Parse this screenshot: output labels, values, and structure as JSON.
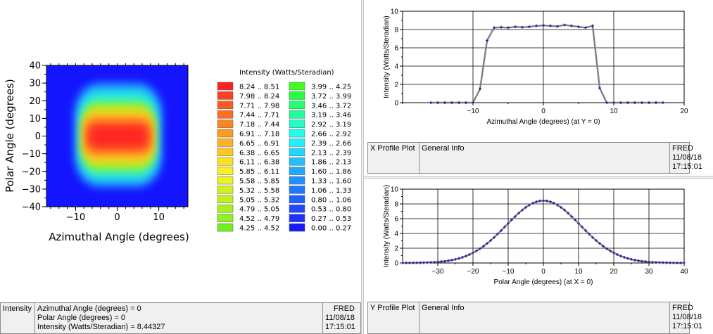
{
  "colors": {
    "line_gray": "#808080",
    "marker_blue": "#1a1aa8",
    "panel_bg": "#f0f0f0"
  },
  "intensity_map": {
    "type": "heatmap",
    "xlabel": "Azimuthal Angle (degrees)",
    "ylabel": "Polar Angle (degrees)",
    "xlim": [
      -17,
      17
    ],
    "ylim": [
      -40,
      40
    ],
    "xticks": [
      "−10",
      "0",
      "10"
    ],
    "xtick_values": [
      -10,
      0,
      10
    ],
    "yticks": [
      "40",
      "30",
      "20",
      "10",
      "0",
      "−10",
      "−20",
      "−30",
      "−40"
    ],
    "ytick_values": [
      40,
      30,
      20,
      10,
      0,
      -10,
      -20,
      -30,
      -40
    ],
    "peak_value": 8.44327,
    "legend_title": "Intensity (Watts/Steradian)",
    "legend": [
      {
        "label": "8.24 .. 8.51",
        "color": "#ff2020"
      },
      {
        "label": "7.98 .. 8.24",
        "color": "#ff4020"
      },
      {
        "label": "7.71 .. 7.98",
        "color": "#ff5a20"
      },
      {
        "label": "7.44 .. 7.71",
        "color": "#ff6e20"
      },
      {
        "label": "7.18 .. 7.44",
        "color": "#ff8420"
      },
      {
        "label": "6.91 .. 7.18",
        "color": "#ff9a20"
      },
      {
        "label": "6.65 .. 6.91",
        "color": "#ffb020"
      },
      {
        "label": "6.38 .. 6.65",
        "color": "#ffc820"
      },
      {
        "label": "6.11 .. 6.38",
        "color": "#ffe020"
      },
      {
        "label": "5.85 .. 6.11",
        "color": "#f8f020"
      },
      {
        "label": "5.58 .. 5.85",
        "color": "#e8f420"
      },
      {
        "label": "5.32 .. 5.58",
        "color": "#d4f020"
      },
      {
        "label": "5.05 .. 5.32",
        "color": "#c0f020"
      },
      {
        "label": "4.79 .. 5.05",
        "color": "#a8f020"
      },
      {
        "label": "4.52 .. 4.79",
        "color": "#90f020"
      },
      {
        "label": "4.25 .. 4.52",
        "color": "#70f020"
      },
      {
        "label": "3.99 .. 4.25",
        "color": "#40ff20"
      },
      {
        "label": "3.72 .. 3.99",
        "color": "#20ff40"
      },
      {
        "label": "3.46 .. 3.72",
        "color": "#20ff70"
      },
      {
        "label": "3.19 .. 3.46",
        "color": "#20ffa0"
      },
      {
        "label": "2.92 .. 3.19",
        "color": "#20ffc8"
      },
      {
        "label": "2.66 .. 2.92",
        "color": "#20ffe8"
      },
      {
        "label": "2.39 .. 2.66",
        "color": "#20f0ff"
      },
      {
        "label": "2.13 .. 2.39",
        "color": "#20d8ff"
      },
      {
        "label": "1.86 .. 2.13",
        "color": "#20c0ff"
      },
      {
        "label": "1.60 .. 1.86",
        "color": "#20a8ff"
      },
      {
        "label": "1.33 .. 1.60",
        "color": "#2090ff"
      },
      {
        "label": "1.06 .. 1.33",
        "color": "#2078ff"
      },
      {
        "label": "0.80 .. 1.06",
        "color": "#2060ff"
      },
      {
        "label": "0.53 .. 0.80",
        "color": "#2048ff"
      },
      {
        "label": "0.27 .. 0.53",
        "color": "#2030ff"
      },
      {
        "label": "0.00 .. 0.27",
        "color": "#1818ff"
      }
    ]
  },
  "chart_data": [
    {
      "type": "line",
      "xlabel": "Azimuthal Angle (degrees) (at Y = 0)",
      "ylabel": "Intensity (Watts/Steradian)",
      "xlim": [
        -20,
        20
      ],
      "ylim": [
        0,
        10
      ],
      "xticks": [
        -10,
        0,
        10,
        20
      ],
      "yticks": [
        0,
        2,
        4,
        6,
        8,
        10
      ],
      "grid": true,
      "x": [
        -16,
        -15,
        -14,
        -13,
        -12,
        -11,
        -10,
        -9,
        -8,
        -7,
        -6,
        -5,
        -4,
        -3,
        -2,
        -1,
        0,
        1,
        2,
        3,
        4,
        5,
        6,
        7,
        8,
        9,
        10,
        11,
        12,
        13,
        14,
        15,
        16,
        17
      ],
      "y": [
        0,
        0,
        0,
        0,
        0,
        0,
        0,
        1.5,
        6.8,
        8.2,
        8.25,
        8.2,
        8.3,
        8.25,
        8.3,
        8.4,
        8.45,
        8.4,
        8.35,
        8.5,
        8.4,
        8.3,
        8.2,
        8.4,
        1.6,
        0,
        0,
        0,
        0,
        0,
        0,
        0,
        0,
        0
      ]
    },
    {
      "type": "line",
      "xlabel": "Polar Angle (degrees) (at X = 0)",
      "ylabel": "Intensity (Watts/Steradian)",
      "xlim": [
        -40,
        40
      ],
      "ylim": [
        0,
        10
      ],
      "xticks": [
        -30,
        -20,
        -10,
        0,
        10,
        20,
        30,
        40
      ],
      "yticks": [
        0,
        2,
        4,
        6,
        8,
        10
      ],
      "grid": true,
      "gaussian": {
        "peak": 8.44,
        "center": 0,
        "sigma": 10.5,
        "x_from": -40,
        "x_to": 40,
        "step": 1
      }
    }
  ],
  "status_main": {
    "label": "Intensity",
    "lines": [
      "Azimuthal Angle (degrees) = 0",
      "Polar Angle (degrees) = 0",
      "Intensity (Watts/Steradian) = 8.44327"
    ],
    "app": "FRED",
    "date": "11/08/18",
    "time": "17:15:01"
  },
  "status_x": {
    "label": "X Profile Plot",
    "info": "General Info",
    "app": "FRED",
    "date": "11/08/18",
    "time": "17:15:01"
  },
  "status_y": {
    "label": "Y Profile Plot",
    "info": "General Info",
    "app": "FRED",
    "date": "11/08/18",
    "time": "17:15:01"
  }
}
